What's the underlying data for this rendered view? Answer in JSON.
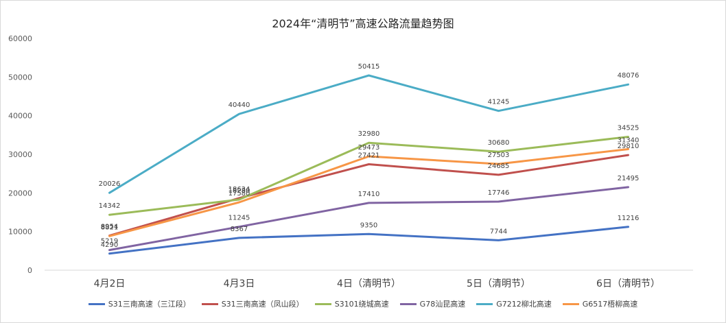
{
  "chart_data": {
    "type": "line",
    "title": "2024年“清明节”高速公路流量趋势图",
    "xlabel": "",
    "ylabel": "",
    "categories": [
      "4月2日",
      "4月3日",
      "4日（清明节）",
      "5日（清明节）",
      "6日（清明节）"
    ],
    "ylim": [
      0,
      60000
    ],
    "yticks": [
      0,
      10000,
      20000,
      30000,
      40000,
      50000,
      60000
    ],
    "grid": false,
    "legend_position": "bottom",
    "series": [
      {
        "name": "S31三南高速（三江段）",
        "color": "#4472c4",
        "values": [
          4290,
          8367,
          9350,
          7744,
          11216
        ]
      },
      {
        "name": "S31三南高速（凤山段）",
        "color": "#c0504d",
        "values": [
          8954,
          18634,
          27421,
          24685,
          29810
        ]
      },
      {
        "name": "S3101绕城高速",
        "color": "#9bbb59",
        "values": [
          14342,
          18280,
          32980,
          30680,
          34525
        ]
      },
      {
        "name": "G78汕昆高速",
        "color": "#8064a2",
        "values": [
          5219,
          11245,
          17410,
          17746,
          21495
        ]
      },
      {
        "name": "G7212柳北高速",
        "color": "#4bacc6",
        "values": [
          20026,
          40440,
          50415,
          41245,
          48076
        ]
      },
      {
        "name": "G6517梧柳高速",
        "color": "#f79646",
        "values": [
          8821,
          17580,
          29473,
          27503,
          31340
        ]
      }
    ]
  }
}
